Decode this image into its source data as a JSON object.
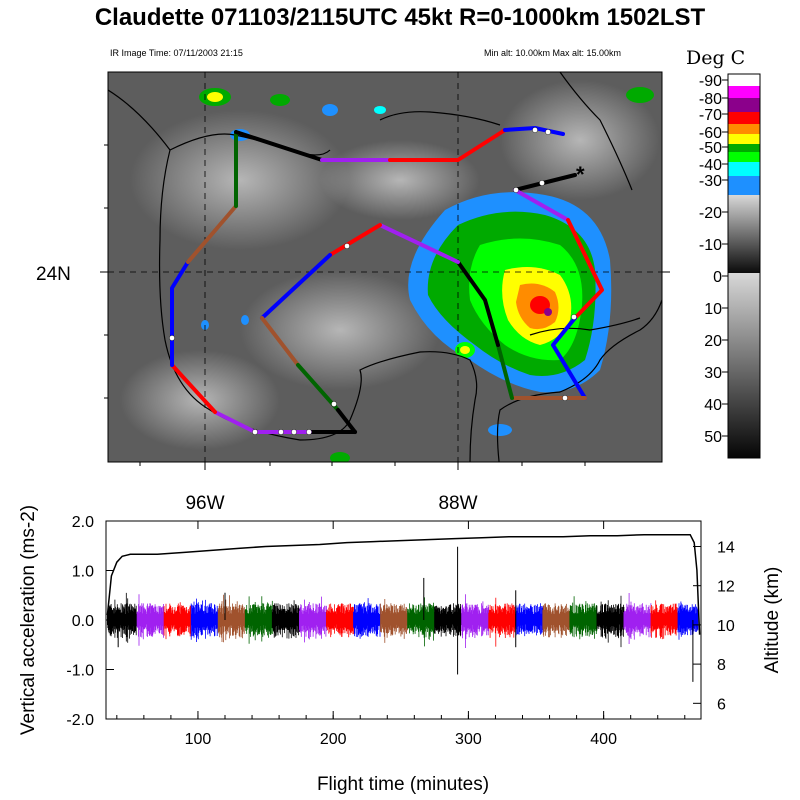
{
  "header": {
    "title": "Claudette 071103/2115UTC 45kt  R=0-1000km 1502LST",
    "ir_time": "IR Image Time: 07/11/2003 21:15",
    "alt_range": "Min alt: 10.00km  Max alt: 15.00km"
  },
  "colorbar": {
    "title": "Deg C",
    "labels": [
      "-90",
      "-80",
      "-70",
      "-60",
      "-50",
      "-40",
      "-30",
      "-20",
      "-10",
      "0",
      "10",
      "20",
      "30",
      "40",
      "50"
    ],
    "colors": [
      "#ffffff",
      "#ff00ff",
      "#8b008b",
      "#ff0000",
      "#ff8c00",
      "#ffff00",
      "#00aa00",
      "#00ff00",
      "#00ffff",
      "#1e90ff",
      "#cfcfcf",
      "#000000"
    ]
  },
  "map": {
    "lat_label": "24N",
    "lon_labels": [
      "96W",
      "88W"
    ]
  },
  "legend_colors": {
    "black": "#000000",
    "purple": "#a020f0",
    "red": "#ff0000",
    "blue": "#0000ff",
    "brown": "#a0522d",
    "green": "#006400"
  },
  "chart_data": {
    "type": "line",
    "xlabel": "Flight time (minutes)",
    "ylabel": "Vertical acceleration (ms-2)",
    "ylabel_right": "Altitude (km)",
    "xlim": [
      32,
      472
    ],
    "ylim": [
      -2.0,
      2.0
    ],
    "ylim_right": [
      5.2,
      15.3
    ],
    "x_ticks": [
      "100",
      "200",
      "300",
      "400"
    ],
    "y_ticks": [
      "2.0",
      "1.0",
      "0.0",
      "-1.0",
      "-2.0"
    ],
    "y_right_ticks": [
      "14",
      "12",
      "10",
      "8",
      "6"
    ],
    "altitude_series": {
      "name": "Altitude",
      "x": [
        33,
        36,
        40,
        44,
        50,
        70,
        90,
        110,
        130,
        150,
        170,
        190,
        210,
        230,
        250,
        270,
        290,
        310,
        330,
        350,
        370,
        390,
        410,
        430,
        450,
        462,
        464,
        467,
        469,
        471
      ],
      "y": [
        10.5,
        12.5,
        13.2,
        13.5,
        13.6,
        13.6,
        13.7,
        13.8,
        13.9,
        14.0,
        14.05,
        14.1,
        14.2,
        14.25,
        14.3,
        14.35,
        14.4,
        14.45,
        14.5,
        14.5,
        14.5,
        14.55,
        14.55,
        14.6,
        14.6,
        14.6,
        14.6,
        14.2,
        12.8,
        9.5
      ]
    },
    "acceleration_segments": [
      {
        "color": "black",
        "x": [
          33,
          55
        ]
      },
      {
        "color": "purple",
        "x": [
          55,
          75
        ]
      },
      {
        "color": "red",
        "x": [
          75,
          95
        ]
      },
      {
        "color": "blue",
        "x": [
          95,
          115
        ]
      },
      {
        "color": "brown",
        "x": [
          115,
          135
        ]
      },
      {
        "color": "green",
        "x": [
          135,
          155
        ]
      },
      {
        "color": "black",
        "x": [
          155,
          175
        ]
      },
      {
        "color": "purple",
        "x": [
          175,
          195
        ]
      },
      {
        "color": "red",
        "x": [
          195,
          215
        ]
      },
      {
        "color": "blue",
        "x": [
          215,
          235
        ]
      },
      {
        "color": "brown",
        "x": [
          235,
          255
        ]
      },
      {
        "color": "green",
        "x": [
          255,
          275
        ]
      },
      {
        "color": "black",
        "x": [
          275,
          295
        ]
      },
      {
        "color": "purple",
        "x": [
          295,
          315
        ]
      },
      {
        "color": "red",
        "x": [
          315,
          335
        ]
      },
      {
        "color": "blue",
        "x": [
          335,
          355
        ]
      },
      {
        "color": "brown",
        "x": [
          355,
          375
        ]
      },
      {
        "color": "green",
        "x": [
          375,
          395
        ]
      },
      {
        "color": "black",
        "x": [
          395,
          415
        ]
      },
      {
        "color": "purple",
        "x": [
          415,
          435
        ]
      },
      {
        "color": "red",
        "x": [
          435,
          455
        ]
      },
      {
        "color": "blue",
        "x": [
          455,
          470
        ]
      }
    ],
    "acceleration_spikes": [
      {
        "x": 267,
        "y": 0.85
      },
      {
        "x": 292,
        "y": 1.48
      },
      {
        "x": 292,
        "y": -1.1
      },
      {
        "x": 335,
        "y": 0.6
      },
      {
        "x": 335,
        "y": -0.55
      },
      {
        "x": 466,
        "y": -1.25
      },
      {
        "x": 41,
        "y": -0.55
      },
      {
        "x": 120,
        "y": 0.55
      }
    ]
  }
}
